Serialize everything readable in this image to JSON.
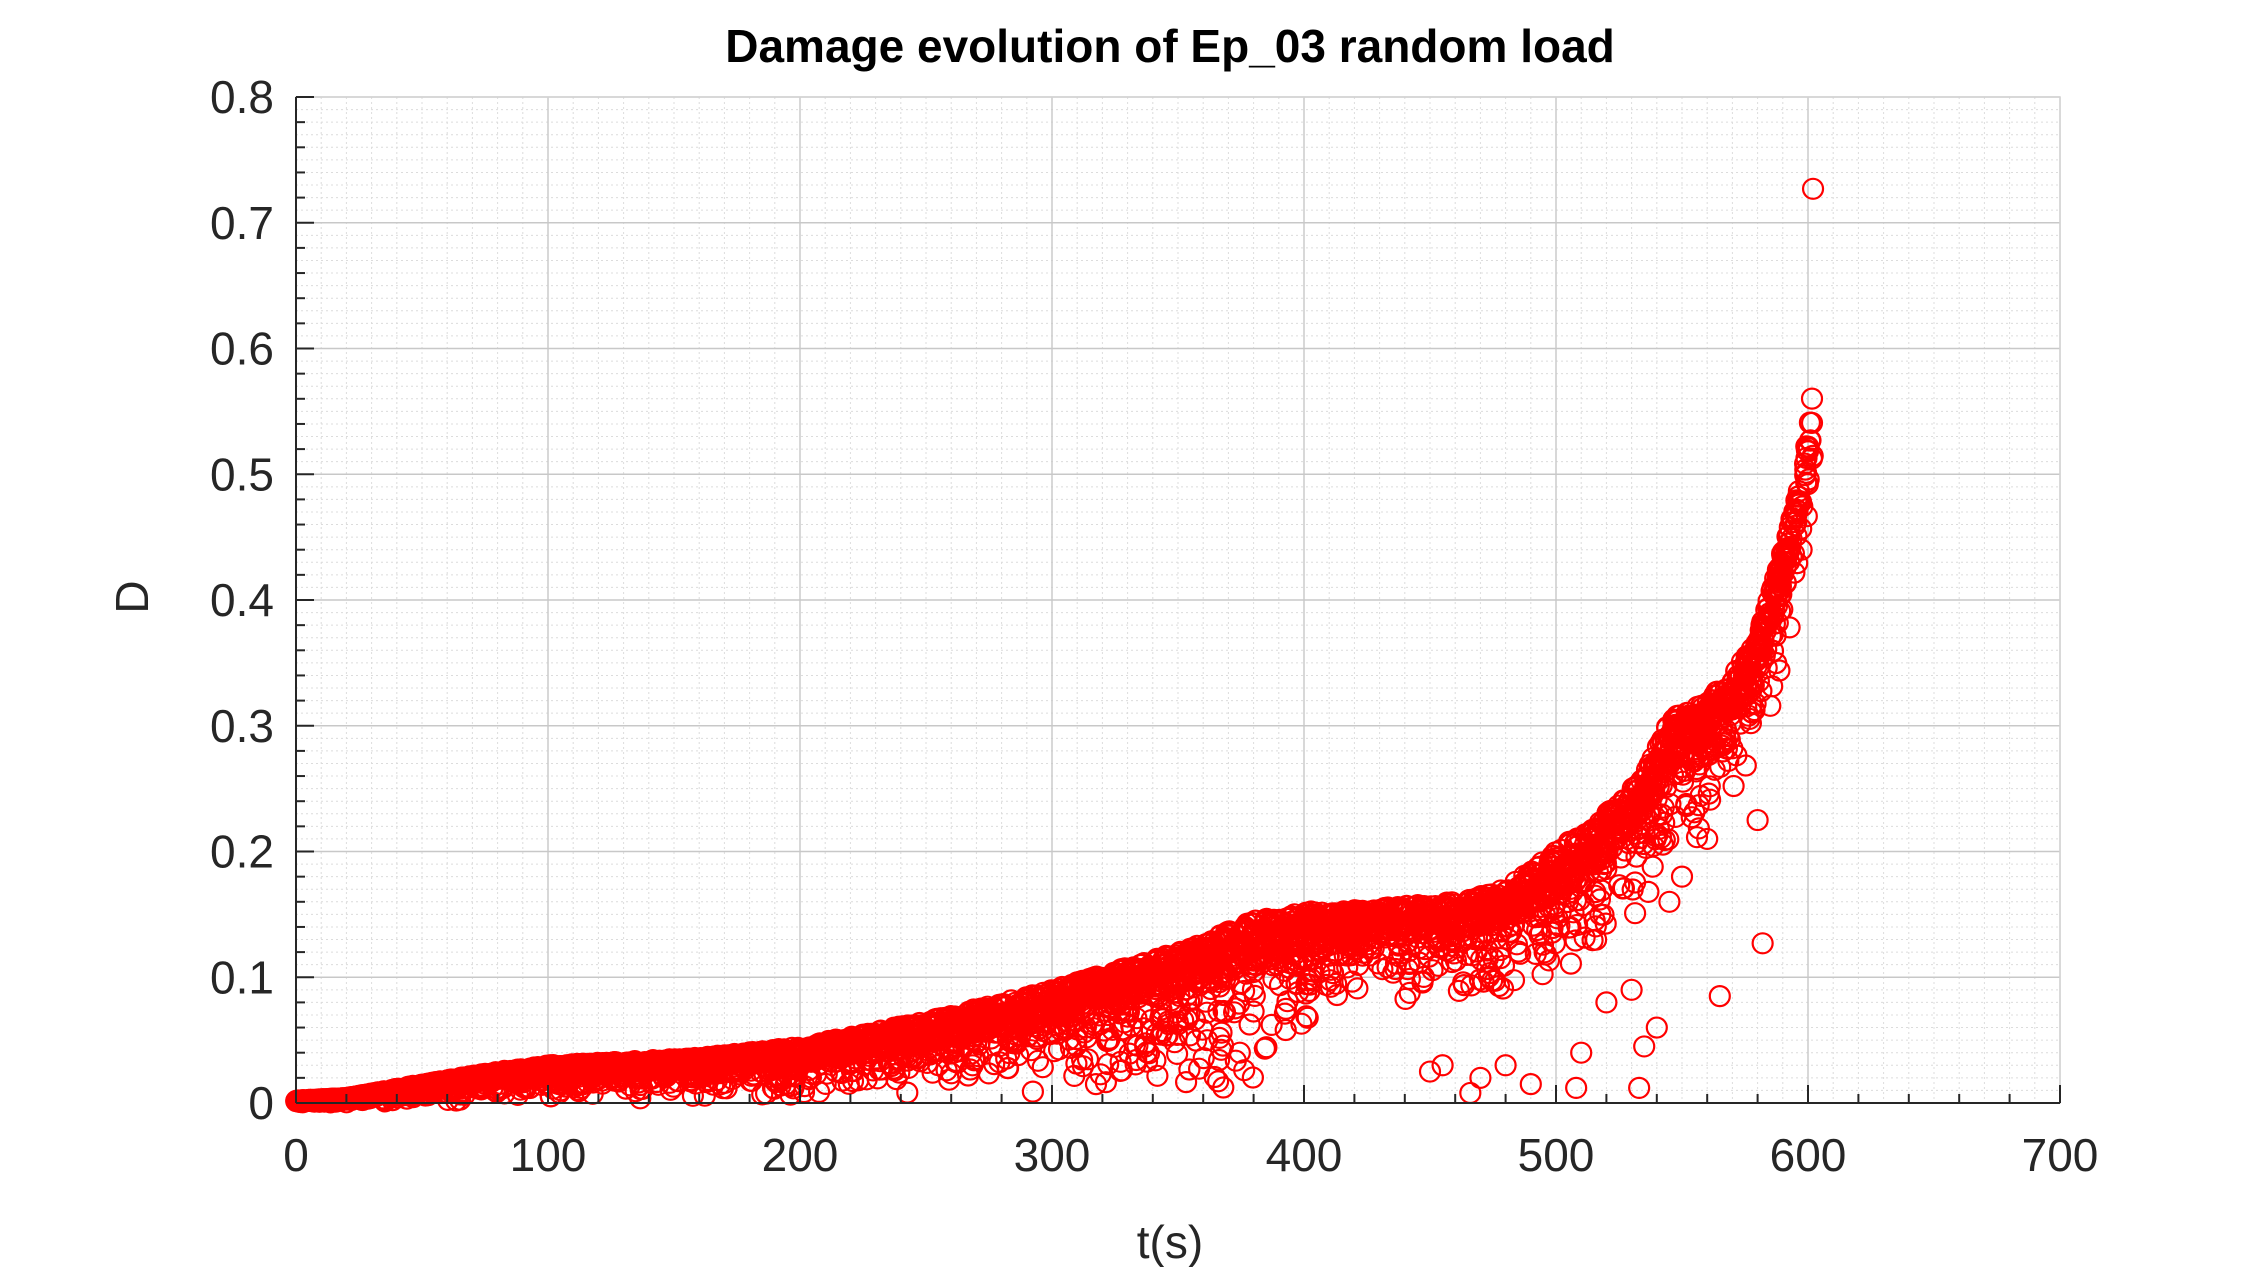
{
  "chart_data": {
    "type": "scatter",
    "title": "Damage evolution of Ep_03 random load",
    "xlabel": "t(s)",
    "ylabel": "D",
    "xlim": [
      0,
      700
    ],
    "ylim": [
      0,
      0.8
    ],
    "xticks": [
      0,
      100,
      200,
      300,
      400,
      500,
      600,
      700
    ],
    "yticks": [
      0,
      0.1,
      0.2,
      0.3,
      0.4,
      0.5,
      0.6,
      0.7,
      0.8
    ],
    "xtick_labels": [
      "0",
      "100",
      "200",
      "300",
      "400",
      "500",
      "600",
      "700"
    ],
    "ytick_labels": [
      "0",
      "0.1",
      "0.2",
      "0.3",
      "0.4",
      "0.5",
      "0.6",
      "0.7",
      "0.8"
    ],
    "grid": true,
    "minor_grid": true,
    "marker": "circle-open",
    "marker_color": "#ff0000",
    "series": [
      {
        "upper_envelope": [
          [
            0,
            0.002
          ],
          [
            20,
            0.004
          ],
          [
            50,
            0.015
          ],
          [
            80,
            0.025
          ],
          [
            100,
            0.03
          ],
          [
            130,
            0.033
          ],
          [
            160,
            0.036
          ],
          [
            200,
            0.045
          ],
          [
            250,
            0.065
          ],
          [
            300,
            0.09
          ],
          [
            350,
            0.12
          ],
          [
            380,
            0.145
          ],
          [
            400,
            0.152
          ],
          [
            430,
            0.155
          ],
          [
            460,
            0.16
          ],
          [
            480,
            0.17
          ],
          [
            500,
            0.2
          ],
          [
            520,
            0.23
          ],
          [
            535,
            0.26
          ],
          [
            545,
            0.305
          ],
          [
            560,
            0.32
          ],
          [
            570,
            0.34
          ],
          [
            580,
            0.37
          ],
          [
            590,
            0.44
          ],
          [
            598,
            0.5
          ],
          [
            602,
            0.57
          ]
        ],
        "lower_envelope": [
          [
            0,
            0.0
          ],
          [
            50,
            0.0
          ],
          [
            100,
            0.0
          ],
          [
            150,
            0.0
          ],
          [
            200,
            0.0
          ],
          [
            250,
            0.0
          ],
          [
            300,
            0.0
          ],
          [
            350,
            0.0
          ],
          [
            380,
            0.0
          ],
          [
            400,
            0.05
          ],
          [
            430,
            0.08
          ],
          [
            460,
            0.07
          ],
          [
            480,
            0.06
          ],
          [
            500,
            0.07
          ],
          [
            520,
            0.1
          ],
          [
            540,
            0.15
          ],
          [
            560,
            0.2
          ],
          [
            575,
            0.25
          ],
          [
            585,
            0.3
          ],
          [
            595,
            0.38
          ],
          [
            602,
            0.46
          ]
        ],
        "outliers": [
          [
            602,
            0.727
          ],
          [
            582,
            0.127
          ],
          [
            565,
            0.085
          ],
          [
            533,
            0.012
          ],
          [
            508,
            0.012
          ],
          [
            466,
            0.008
          ],
          [
            450,
            0.025
          ],
          [
            535,
            0.045
          ],
          [
            540,
            0.06
          ],
          [
            510,
            0.04
          ],
          [
            470,
            0.02
          ],
          [
            480,
            0.03
          ],
          [
            490,
            0.015
          ],
          [
            550,
            0.18
          ],
          [
            560,
            0.21
          ],
          [
            580,
            0.225
          ],
          [
            545,
            0.16
          ],
          [
            530,
            0.09
          ],
          [
            520,
            0.08
          ],
          [
            455,
            0.03
          ]
        ]
      }
    ]
  }
}
